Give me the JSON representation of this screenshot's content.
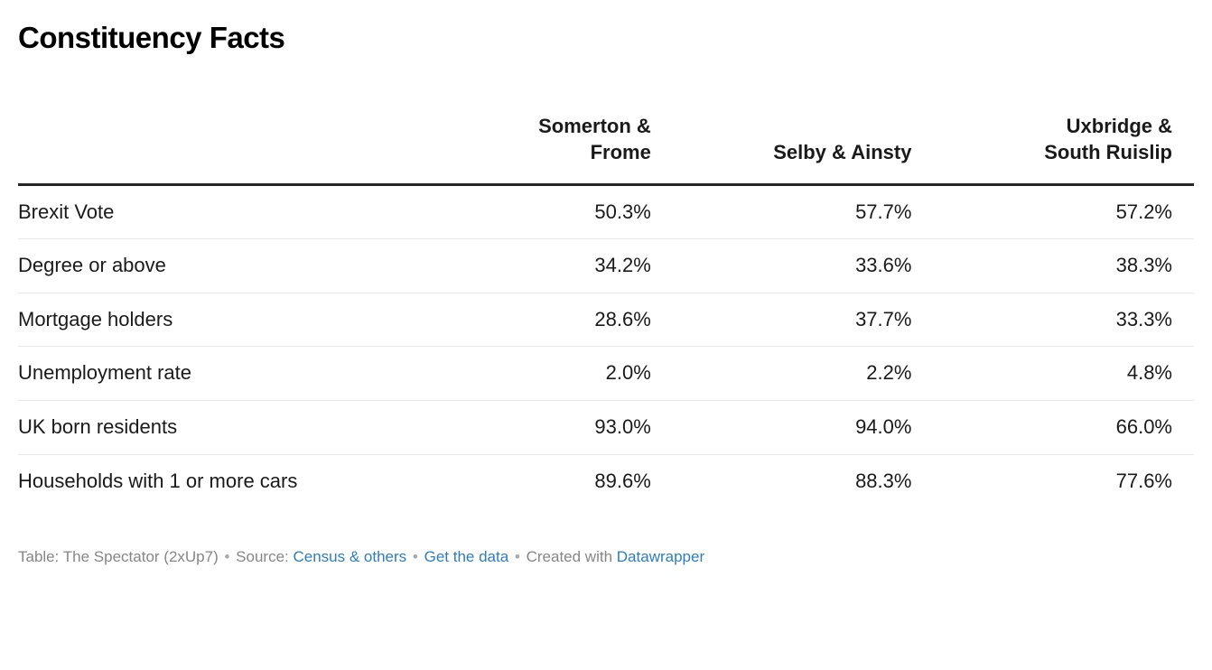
{
  "title": "Constituency Facts",
  "table": {
    "columns": [
      "Somerton & Frome",
      "Selby & Ainsty",
      "Uxbridge & South Ruislip"
    ],
    "rows": [
      {
        "label": "Brexit Vote",
        "values": [
          "50.3%",
          "57.7%",
          "57.2%"
        ]
      },
      {
        "label": "Degree or above",
        "values": [
          "34.2%",
          "33.6%",
          "38.3%"
        ]
      },
      {
        "label": "Mortgage holders",
        "values": [
          "28.6%",
          "37.7%",
          "33.3%"
        ]
      },
      {
        "label": "Unemployment rate",
        "values": [
          "2.0%",
          "2.2%",
          "4.8%"
        ]
      },
      {
        "label": "UK born residents",
        "values": [
          "93.0%",
          "94.0%",
          "66.0%"
        ]
      },
      {
        "label": "Households with 1 or more cars",
        "values": [
          "89.6%",
          "88.3%",
          "77.6%"
        ]
      }
    ]
  },
  "footer": {
    "table_label": "Table: The Spectator (2xUp7)",
    "separator": "•",
    "source_label": "Source:",
    "source_link": "Census & others",
    "get_data_link": "Get the data",
    "created_with_label": "Created with",
    "datawrapper_link": "Datawrapper"
  },
  "colors": {
    "link_blue": "#2d7dbf",
    "text": "#1a1a1a",
    "header_rule": "#262626",
    "row_divider": "#e8e8e8",
    "footer_gray": "#868686"
  },
  "chart_data": {
    "type": "table",
    "title": "Constituency Facts",
    "categories": [
      "Brexit Vote",
      "Degree or above",
      "Mortgage holders",
      "Unemployment rate",
      "UK born residents",
      "Households with 1 or more cars"
    ],
    "series": [
      {
        "name": "Somerton & Frome",
        "values": [
          50.3,
          34.2,
          28.6,
          2.0,
          93.0,
          89.6
        ]
      },
      {
        "name": "Selby & Ainsty",
        "values": [
          57.7,
          33.6,
          37.7,
          2.2,
          94.0,
          88.3
        ]
      },
      {
        "name": "Uxbridge & South Ruislip",
        "values": [
          57.2,
          38.3,
          33.3,
          4.8,
          66.0,
          77.6
        ]
      }
    ],
    "unit": "%",
    "layout": {
      "grid": "horizontal-row-dividers",
      "header_alignment": "right",
      "label_alignment": "left"
    }
  }
}
